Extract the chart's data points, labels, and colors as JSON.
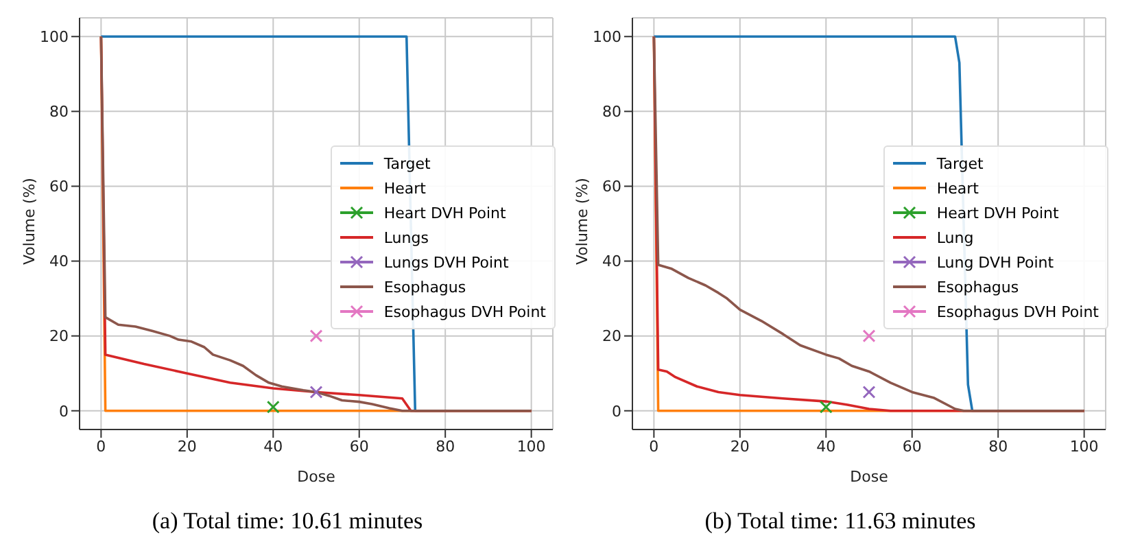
{
  "chart_data": [
    {
      "type": "line",
      "xlabel": "Dose",
      "ylabel": "Volume (%)",
      "annotations": [
        "(a) Total time: 10.61 minutes"
      ],
      "xlim": [
        -5,
        105
      ],
      "ylim": [
        -5,
        105
      ],
      "xticks": [
        0,
        20,
        40,
        60,
        80,
        100
      ],
      "yticks": [
        0,
        20,
        40,
        60,
        80,
        100
      ],
      "grid": true,
      "legend": "center right",
      "series": [
        {
          "name": "Target",
          "color": "#1f77b4",
          "x": [
            0,
            71,
            73,
            100
          ],
          "values": [
            100,
            100,
            0,
            0
          ]
        },
        {
          "name": "Heart",
          "color": "#ff7f0e",
          "x": [
            0,
            1,
            100
          ],
          "values": [
            100,
            0,
            0
          ]
        },
        {
          "name": "Heart DVH Point",
          "type": "scatter",
          "marker": "cross",
          "color": "#2ca02c",
          "x": [
            40
          ],
          "values": [
            1
          ]
        },
        {
          "name": "Lungs",
          "color": "#d62728",
          "x": [
            0,
            1,
            10,
            20,
            30,
            40,
            50,
            60,
            70,
            72,
            100
          ],
          "values": [
            100,
            15,
            12.5,
            10,
            7.5,
            6,
            5,
            4.2,
            3.3,
            0,
            0
          ]
        },
        {
          "name": "Lungs DVH Point",
          "type": "scatter",
          "marker": "cross",
          "color": "#9467bd",
          "x": [
            50
          ],
          "values": [
            5
          ]
        },
        {
          "name": "Esophagus",
          "color": "#8c564b",
          "x": [
            0,
            1,
            4,
            8,
            12,
            16,
            18,
            21,
            24,
            26,
            30,
            33,
            36,
            39,
            42,
            47,
            50,
            53,
            56,
            60,
            63,
            67,
            70,
            100
          ],
          "values": [
            100,
            25,
            23,
            22.5,
            21.3,
            20,
            19,
            18.5,
            17,
            15,
            13.5,
            12,
            9.5,
            7.5,
            6.5,
            5.5,
            5,
            4,
            2.8,
            2.4,
            1.8,
            0.7,
            0,
            0
          ]
        },
        {
          "name": "Esophagus DVH Point",
          "type": "scatter",
          "marker": "cross",
          "color": "#e377c2",
          "x": [
            50
          ],
          "values": [
            20
          ]
        }
      ]
    },
    {
      "type": "line",
      "xlabel": "Dose",
      "ylabel": "Volume (%)",
      "annotations": [
        "(b) Total time: 11.63 minutes"
      ],
      "xlim": [
        -5,
        105
      ],
      "ylim": [
        -5,
        105
      ],
      "xticks": [
        0,
        20,
        40,
        60,
        80,
        100
      ],
      "yticks": [
        0,
        20,
        40,
        60,
        80,
        100
      ],
      "grid": true,
      "legend": "center right",
      "series": [
        {
          "name": "Target",
          "color": "#1f77b4",
          "x": [
            0,
            70,
            71,
            73,
            74,
            100
          ],
          "values": [
            100,
            100,
            93,
            7,
            0,
            0
          ]
        },
        {
          "name": "Heart",
          "color": "#ff7f0e",
          "x": [
            0,
            1,
            100
          ],
          "values": [
            100,
            0,
            0
          ]
        },
        {
          "name": "Heart DVH Point",
          "type": "scatter",
          "marker": "cross",
          "color": "#2ca02c",
          "x": [
            40
          ],
          "values": [
            1
          ]
        },
        {
          "name": "Lung",
          "color": "#d62728",
          "x": [
            0,
            1,
            3,
            5,
            10,
            15,
            20,
            30,
            40,
            45,
            50,
            55,
            100
          ],
          "values": [
            100,
            11,
            10.5,
            9,
            6.5,
            5,
            4.2,
            3.3,
            2.5,
            1.6,
            0.5,
            0,
            0
          ]
        },
        {
          "name": "Lung DVH Point",
          "type": "scatter",
          "marker": "cross",
          "color": "#9467bd",
          "x": [
            50
          ],
          "values": [
            5
          ]
        },
        {
          "name": "Esophagus",
          "color": "#8c564b",
          "x": [
            0,
            1,
            4,
            8,
            12,
            15,
            17,
            20,
            25,
            30,
            34,
            40,
            43,
            46,
            50,
            55,
            60,
            65,
            70,
            72,
            100
          ],
          "values": [
            100,
            39,
            38,
            35.5,
            33.5,
            31.5,
            30,
            27,
            24,
            20.5,
            17.5,
            15,
            14,
            12,
            10.5,
            7.5,
            5,
            3.5,
            0.5,
            0,
            0
          ]
        },
        {
          "name": "Esophagus DVH Point",
          "type": "scatter",
          "marker": "cross",
          "color": "#e377c2",
          "x": [
            50
          ],
          "values": [
            20
          ]
        }
      ]
    }
  ]
}
